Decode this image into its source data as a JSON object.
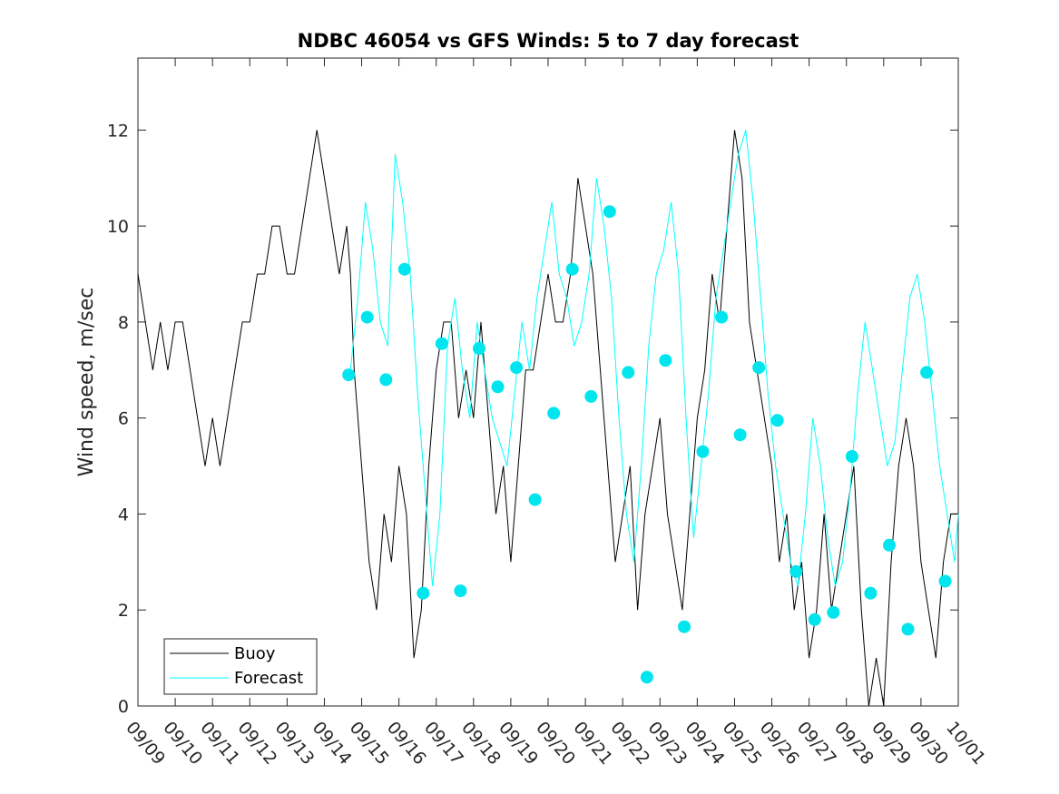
{
  "chart_data": {
    "type": "line",
    "title": "NDBC 46054 vs GFS Winds: 5 to 7 day forecast",
    "xlabel": "",
    "ylabel": "Wind speed, m/sec",
    "xlim": [
      0,
      22
    ],
    "ylim": [
      0,
      13.5
    ],
    "grid": false,
    "legend_position": "bottom-left",
    "x_tick_labels": [
      "09/09",
      "09/10",
      "09/11",
      "09/12",
      "09/13",
      "09/14",
      "09/15",
      "09/16",
      "09/17",
      "09/18",
      "09/19",
      "09/20",
      "09/21",
      "09/22",
      "09/23",
      "09/24",
      "09/25",
      "09/26",
      "09/27",
      "09/28",
      "09/29",
      "09/30",
      "10/01"
    ],
    "y_ticks": [
      0,
      2,
      4,
      6,
      8,
      10,
      12
    ],
    "colors": {
      "buoy": "#000000",
      "forecast": "#00ffff",
      "markers": "#00e5ee"
    },
    "series": [
      {
        "name": "Buoy",
        "x": [
          0,
          0.2,
          0.4,
          0.6,
          0.8,
          1.0,
          1.2,
          1.4,
          1.6,
          1.8,
          2.0,
          2.2,
          2.4,
          2.6,
          2.8,
          3.0,
          3.2,
          3.4,
          3.6,
          3.8,
          4.0,
          4.2,
          4.4,
          4.6,
          4.8,
          5.0,
          5.2,
          5.4,
          5.6,
          5.7,
          5.8,
          6.0,
          6.2,
          6.4,
          6.6,
          6.8,
          7.0,
          7.2,
          7.4,
          7.6,
          7.8,
          8.0,
          8.2,
          8.4,
          8.6,
          8.8,
          9.0,
          9.2,
          9.4,
          9.6,
          9.8,
          10.0,
          10.2,
          10.4,
          10.6,
          10.8,
          11.0,
          11.2,
          11.4,
          11.6,
          11.8,
          12.0,
          12.2,
          12.4,
          12.6,
          12.8,
          13.0,
          13.2,
          13.4,
          13.6,
          13.8,
          14.0,
          14.2,
          14.4,
          14.6,
          14.8,
          15.0,
          15.2,
          15.4,
          15.6,
          15.8,
          16.0,
          16.2,
          16.4,
          16.6,
          16.8,
          17.0,
          17.2,
          17.4,
          17.6,
          17.8,
          18.0,
          18.2,
          18.4,
          18.6,
          18.8,
          19.0,
          19.2,
          19.4,
          19.6,
          19.8,
          20.0,
          20.2,
          20.4,
          20.6,
          20.8,
          21.0,
          21.2,
          21.4,
          21.6,
          21.8,
          22.0
        ],
        "y": [
          9,
          8,
          7,
          8,
          7,
          8,
          8,
          7,
          6,
          5,
          6,
          5,
          6,
          7,
          8,
          8,
          9,
          9,
          10,
          10,
          9,
          9,
          10,
          11,
          12,
          11,
          10,
          9,
          10,
          9,
          7,
          5,
          3,
          2,
          4,
          3,
          5,
          4,
          1,
          2,
          5,
          7,
          8,
          8,
          6,
          7,
          6,
          8,
          6,
          4,
          5,
          3,
          5,
          7,
          7,
          8,
          9,
          8,
          8,
          9,
          11,
          10,
          9,
          7,
          5,
          3,
          4,
          5,
          2,
          4,
          5,
          6,
          4,
          3,
          2,
          4,
          6,
          7,
          9,
          8,
          10,
          12,
          11,
          8,
          7,
          6,
          5,
          3,
          4,
          2,
          3,
          1,
          2,
          4,
          2,
          3,
          4,
          5,
          2,
          0,
          1,
          0,
          3,
          5,
          6,
          5,
          3,
          2,
          1,
          3,
          4,
          4
        ]
      },
      {
        "name": "Forecast",
        "x": [
          5.7,
          5.9,
          6.1,
          6.3,
          6.5,
          6.7,
          6.9,
          7.1,
          7.3,
          7.5,
          7.7,
          7.9,
          8.1,
          8.3,
          8.5,
          8.7,
          8.9,
          9.1,
          9.3,
          9.5,
          9.7,
          9.9,
          10.1,
          10.3,
          10.5,
          10.7,
          10.9,
          11.1,
          11.3,
          11.5,
          11.7,
          11.9,
          12.1,
          12.3,
          12.5,
          12.7,
          12.9,
          13.1,
          13.3,
          13.5,
          13.7,
          13.9,
          14.1,
          14.3,
          14.5,
          14.7,
          14.9,
          15.1,
          15.3,
          15.5,
          15.7,
          15.9,
          16.1,
          16.3,
          16.5,
          16.7,
          16.9,
          17.1,
          17.3,
          17.5,
          17.7,
          17.9,
          18.1,
          18.3,
          18.5,
          18.7,
          18.9,
          19.1,
          19.3,
          19.5,
          19.7,
          19.9,
          20.1,
          20.3,
          20.5,
          20.7,
          20.9,
          21.1,
          21.3,
          21.5,
          21.7,
          21.9,
          22.0
        ],
        "y": [
          7.0,
          8.5,
          10.5,
          9.5,
          8.0,
          7.5,
          11.5,
          10.5,
          9.0,
          6.5,
          4.5,
          2.5,
          4.0,
          7.5,
          8.5,
          7.0,
          6.0,
          8.0,
          7.0,
          6.0,
          5.5,
          5.0,
          6.5,
          8.0,
          7.0,
          8.5,
          9.5,
          10.5,
          9.0,
          8.5,
          7.5,
          8.0,
          9.0,
          11.0,
          10.0,
          8.5,
          6.0,
          4.0,
          3.0,
          5.0,
          7.5,
          9.0,
          9.5,
          10.5,
          9.0,
          6.0,
          3.5,
          5.0,
          6.5,
          8.5,
          9.5,
          10.5,
          11.5,
          12.0,
          10.5,
          8.5,
          6.5,
          5.0,
          4.0,
          3.0,
          2.5,
          4.0,
          6.0,
          5.0,
          3.5,
          2.5,
          3.0,
          4.5,
          6.5,
          8.0,
          7.0,
          6.0,
          5.0,
          5.5,
          7.0,
          8.5,
          9.0,
          8.0,
          6.5,
          5.0,
          4.0,
          3.0,
          4.0
        ]
      },
      {
        "name": "Forecast markers",
        "x": [
          5.65,
          6.15,
          6.65,
          7.15,
          7.65,
          8.15,
          8.65,
          9.15,
          9.65,
          10.15,
          10.65,
          11.15,
          11.65,
          12.15,
          12.65,
          13.15,
          13.65,
          14.15,
          14.65,
          15.15,
          15.65,
          16.15,
          16.65,
          17.15,
          17.65,
          18.15,
          18.65,
          19.15,
          19.65,
          20.15,
          20.65,
          21.15,
          21.65
        ],
        "y": [
          6.9,
          8.1,
          6.8,
          9.1,
          2.35,
          7.55,
          2.4,
          7.45,
          6.65,
          7.05,
          4.3,
          6.1,
          9.1,
          6.45,
          10.3,
          6.95,
          0.6,
          7.2,
          1.65,
          5.3,
          8.1,
          5.65,
          7.05,
          5.95,
          2.8,
          1.8,
          1.95,
          5.2,
          2.35,
          3.35,
          1.6,
          6.95,
          2.6
        ]
      }
    ],
    "legend": [
      "Buoy",
      "Forecast"
    ]
  }
}
